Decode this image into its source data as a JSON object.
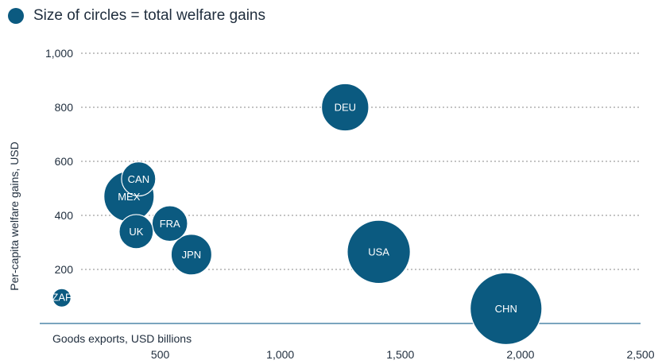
{
  "legend": {
    "text": "Size of circles = total welfare gains",
    "color": "#0b5a80"
  },
  "chart_data": {
    "type": "scatter",
    "title": "",
    "xlabel": "Goods exports, USD billions",
    "ylabel": "Per-capita welfare gains, USD",
    "xlim": [
      0,
      2500
    ],
    "ylim": [
      0,
      1000
    ],
    "xticks": [
      500,
      1000,
      1500,
      2000,
      2500
    ],
    "xtick_labels": [
      "500",
      "1,000",
      "1,500",
      "2,000",
      "2,500"
    ],
    "yticks": [
      200,
      400,
      600,
      800,
      1000
    ],
    "ytick_labels": [
      "200",
      "400",
      "600",
      "800",
      "1,000"
    ],
    "grid": "horizontal dotted",
    "bubble_color": "#0b5a80",
    "points": [
      {
        "label": "ZAF",
        "x": 90,
        "y": 95,
        "size": 3.5
      },
      {
        "label": "MEX",
        "x": 370,
        "y": 470,
        "size": 26
      },
      {
        "label": "CAN",
        "x": 410,
        "y": 535,
        "size": 12
      },
      {
        "label": "UK",
        "x": 400,
        "y": 340,
        "size": 12
      },
      {
        "label": "FRA",
        "x": 540,
        "y": 370,
        "size": 13
      },
      {
        "label": "JPN",
        "x": 630,
        "y": 255,
        "size": 17
      },
      {
        "label": "DEU",
        "x": 1270,
        "y": 800,
        "size": 23
      },
      {
        "label": "USA",
        "x": 1410,
        "y": 265,
        "size": 41
      },
      {
        "label": "CHN",
        "x": 1940,
        "y": 55,
        "size": 53
      }
    ]
  }
}
